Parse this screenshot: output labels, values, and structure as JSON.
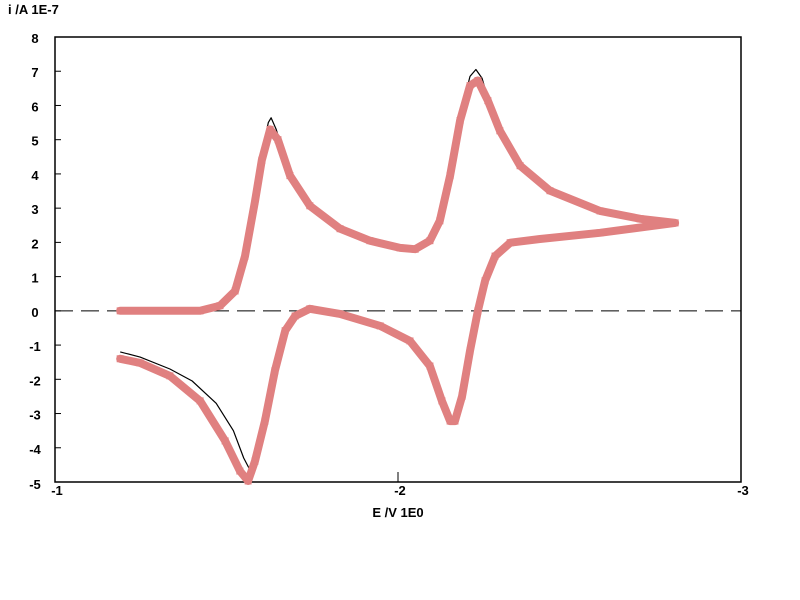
{
  "chart_data": {
    "type": "line",
    "title": "",
    "ylabel": "i /A  1E-7",
    "xlabel": "E /V  1E0",
    "xlim": [
      -1,
      -3
    ],
    "ylim": [
      -5,
      8
    ],
    "x_ticks": [
      "-1",
      "-2",
      "-3"
    ],
    "y_ticks": [
      "8",
      "7",
      "6",
      "5",
      "4",
      "3",
      "2",
      "1",
      "0",
      "-1",
      "-2",
      "-3",
      "-4",
      "-5"
    ],
    "x_tick_values": [
      -1,
      -2,
      -3
    ],
    "y_tick_values": [
      8,
      7,
      6,
      5,
      4,
      3,
      2,
      1,
      0,
      -1,
      -2,
      -3,
      -4,
      -5
    ],
    "zero_line": "dashed",
    "grid": false,
    "colors": {
      "simulated": "#e08080",
      "experimental": "#000000",
      "axes": "#000000"
    },
    "series": [
      {
        "style": "thick-markers",
        "points": [
          [
            -1.19,
            0
          ],
          [
            -1.423,
            0
          ],
          [
            -1.481,
            0.15
          ],
          [
            -1.525,
            0.58
          ],
          [
            -1.554,
            1.6
          ],
          [
            -1.583,
            3.2
          ],
          [
            -1.603,
            4.4
          ],
          [
            -1.627,
            5.3
          ],
          [
            -1.65,
            5.0
          ],
          [
            -1.685,
            3.95
          ],
          [
            -1.743,
            3.07
          ],
          [
            -1.831,
            2.4
          ],
          [
            -1.918,
            2.05
          ],
          [
            -2.006,
            1.84
          ],
          [
            -2.05,
            1.8
          ],
          [
            -2.093,
            2.05
          ],
          [
            -2.122,
            2.63
          ],
          [
            -2.152,
            3.95
          ],
          [
            -2.181,
            5.56
          ],
          [
            -2.21,
            6.58
          ],
          [
            -2.233,
            6.73
          ],
          [
            -2.262,
            6.14
          ],
          [
            -2.297,
            5.26
          ],
          [
            -2.356,
            4.24
          ],
          [
            -2.443,
            3.51
          ],
          [
            -2.589,
            2.92
          ],
          [
            -2.706,
            2.69
          ],
          [
            -2.808,
            2.57
          ],
          [
            -2.589,
            2.28
          ],
          [
            -2.414,
            2.1
          ],
          [
            -2.327,
            1.99
          ],
          [
            -2.283,
            1.6
          ],
          [
            -2.254,
            0.88
          ],
          [
            -2.233,
            0
          ],
          [
            -2.21,
            -1.17
          ],
          [
            -2.187,
            -2.49
          ],
          [
            -2.166,
            -3.22
          ],
          [
            -2.152,
            -3.22
          ],
          [
            -2.128,
            -2.63
          ],
          [
            -2.093,
            -1.61
          ],
          [
            -2.035,
            -0.88
          ],
          [
            -1.948,
            -0.44
          ],
          [
            -1.831,
            -0.09
          ],
          [
            -1.743,
            0.06
          ],
          [
            -1.7,
            -0.15
          ],
          [
            -1.671,
            -0.58
          ],
          [
            -1.641,
            -1.75
          ],
          [
            -1.612,
            -3.22
          ],
          [
            -1.583,
            -4.39
          ],
          [
            -1.563,
            -4.97
          ],
          [
            -1.539,
            -4.68
          ],
          [
            -1.496,
            -3.8
          ],
          [
            -1.423,
            -2.63
          ],
          [
            -1.335,
            -1.9
          ],
          [
            -1.248,
            -1.52
          ],
          [
            -1.19,
            -1.4
          ]
        ]
      },
      {
        "style": "thin-line",
        "points": [
          [
            -1.19,
            0
          ],
          [
            -1.423,
            0
          ],
          [
            -1.481,
            0.15
          ],
          [
            -1.525,
            0.6
          ],
          [
            -1.554,
            1.65
          ],
          [
            -1.583,
            3.3
          ],
          [
            -1.603,
            4.6
          ],
          [
            -1.622,
            5.5
          ],
          [
            -1.63,
            5.64
          ],
          [
            -1.645,
            5.3
          ],
          [
            -1.685,
            4.0
          ],
          [
            -1.743,
            3.07
          ],
          [
            -1.831,
            2.4
          ],
          [
            -1.918,
            2.05
          ],
          [
            -2.006,
            1.84
          ],
          [
            -2.05,
            1.8
          ],
          [
            -2.093,
            2.05
          ],
          [
            -2.122,
            2.65
          ],
          [
            -2.152,
            4.0
          ],
          [
            -2.181,
            5.7
          ],
          [
            -2.21,
            6.85
          ],
          [
            -2.227,
            7.05
          ],
          [
            -2.245,
            6.8
          ],
          [
            -2.262,
            6.2
          ],
          [
            -2.297,
            5.26
          ],
          [
            -2.356,
            4.24
          ],
          [
            -2.443,
            3.51
          ],
          [
            -2.589,
            2.92
          ],
          [
            -2.706,
            2.69
          ],
          [
            -2.808,
            2.57
          ],
          [
            -2.589,
            2.28
          ],
          [
            -2.414,
            2.1
          ],
          [
            -2.327,
            1.99
          ],
          [
            -2.283,
            1.6
          ],
          [
            -2.254,
            0.88
          ],
          [
            -2.233,
            0
          ],
          [
            -2.21,
            -1.17
          ],
          [
            -2.187,
            -2.49
          ],
          [
            -2.166,
            -3.22
          ],
          [
            -2.152,
            -3.22
          ],
          [
            -2.128,
            -2.63
          ],
          [
            -2.093,
            -1.61
          ],
          [
            -2.035,
            -0.88
          ],
          [
            -1.948,
            -0.44
          ],
          [
            -1.831,
            -0.09
          ],
          [
            -1.743,
            0.06
          ],
          [
            -1.7,
            -0.15
          ],
          [
            -1.671,
            -0.58
          ],
          [
            -1.641,
            -1.7
          ],
          [
            -1.612,
            -3.1
          ],
          [
            -1.59,
            -4.2
          ],
          [
            -1.57,
            -4.68
          ],
          [
            -1.55,
            -4.3
          ],
          [
            -1.52,
            -3.5
          ],
          [
            -1.47,
            -2.7
          ],
          [
            -1.4,
            -2.05
          ],
          [
            -1.335,
            -1.7
          ],
          [
            -1.248,
            -1.35
          ],
          [
            -1.19,
            -1.2
          ]
        ]
      }
    ]
  }
}
